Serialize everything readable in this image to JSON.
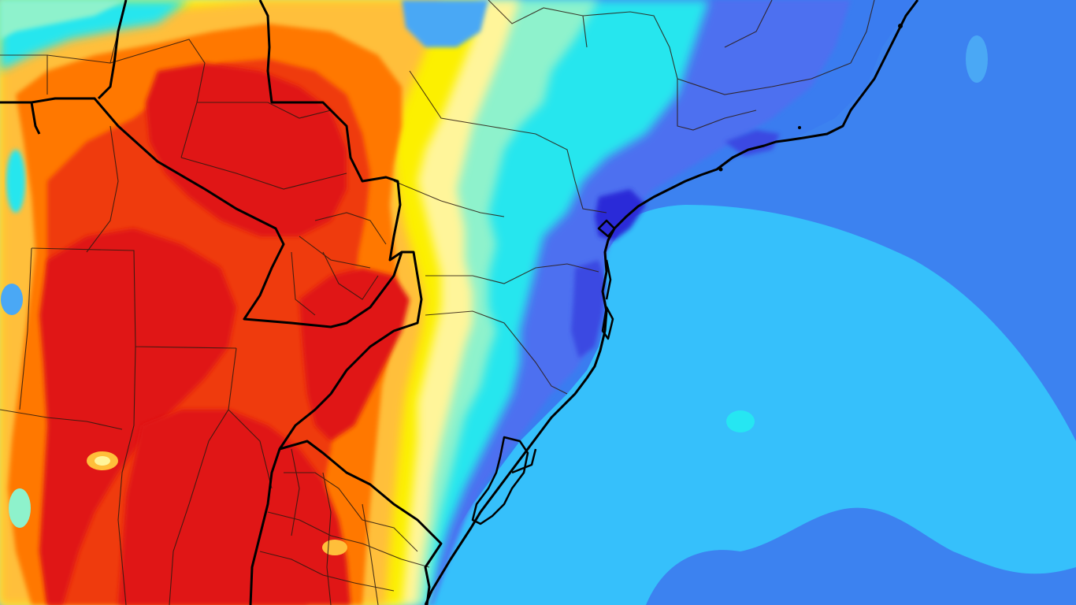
{
  "map": {
    "type": "weather-temperature-field",
    "projection": "lat-lon",
    "region_features": [
      "land",
      "ocean",
      "coastline",
      "country-borders",
      "state-borders",
      "lagoons"
    ],
    "palette": {
      "ocean_base": "#36c0fb",
      "ocean_deep": "#3c82f0",
      "dark_blue": "#2828d8",
      "mid_blue": "#4d6ff0",
      "cyan": "#26f0f0",
      "aqua": "#7ff0d4",
      "pale_yellow": "#fffa8a",
      "yellow": "#fcf400",
      "light_orange": "#ffc03c",
      "orange": "#ff7a00",
      "red_orange": "#f23c10",
      "red": "#e01414",
      "border_color": "#000000"
    }
  }
}
